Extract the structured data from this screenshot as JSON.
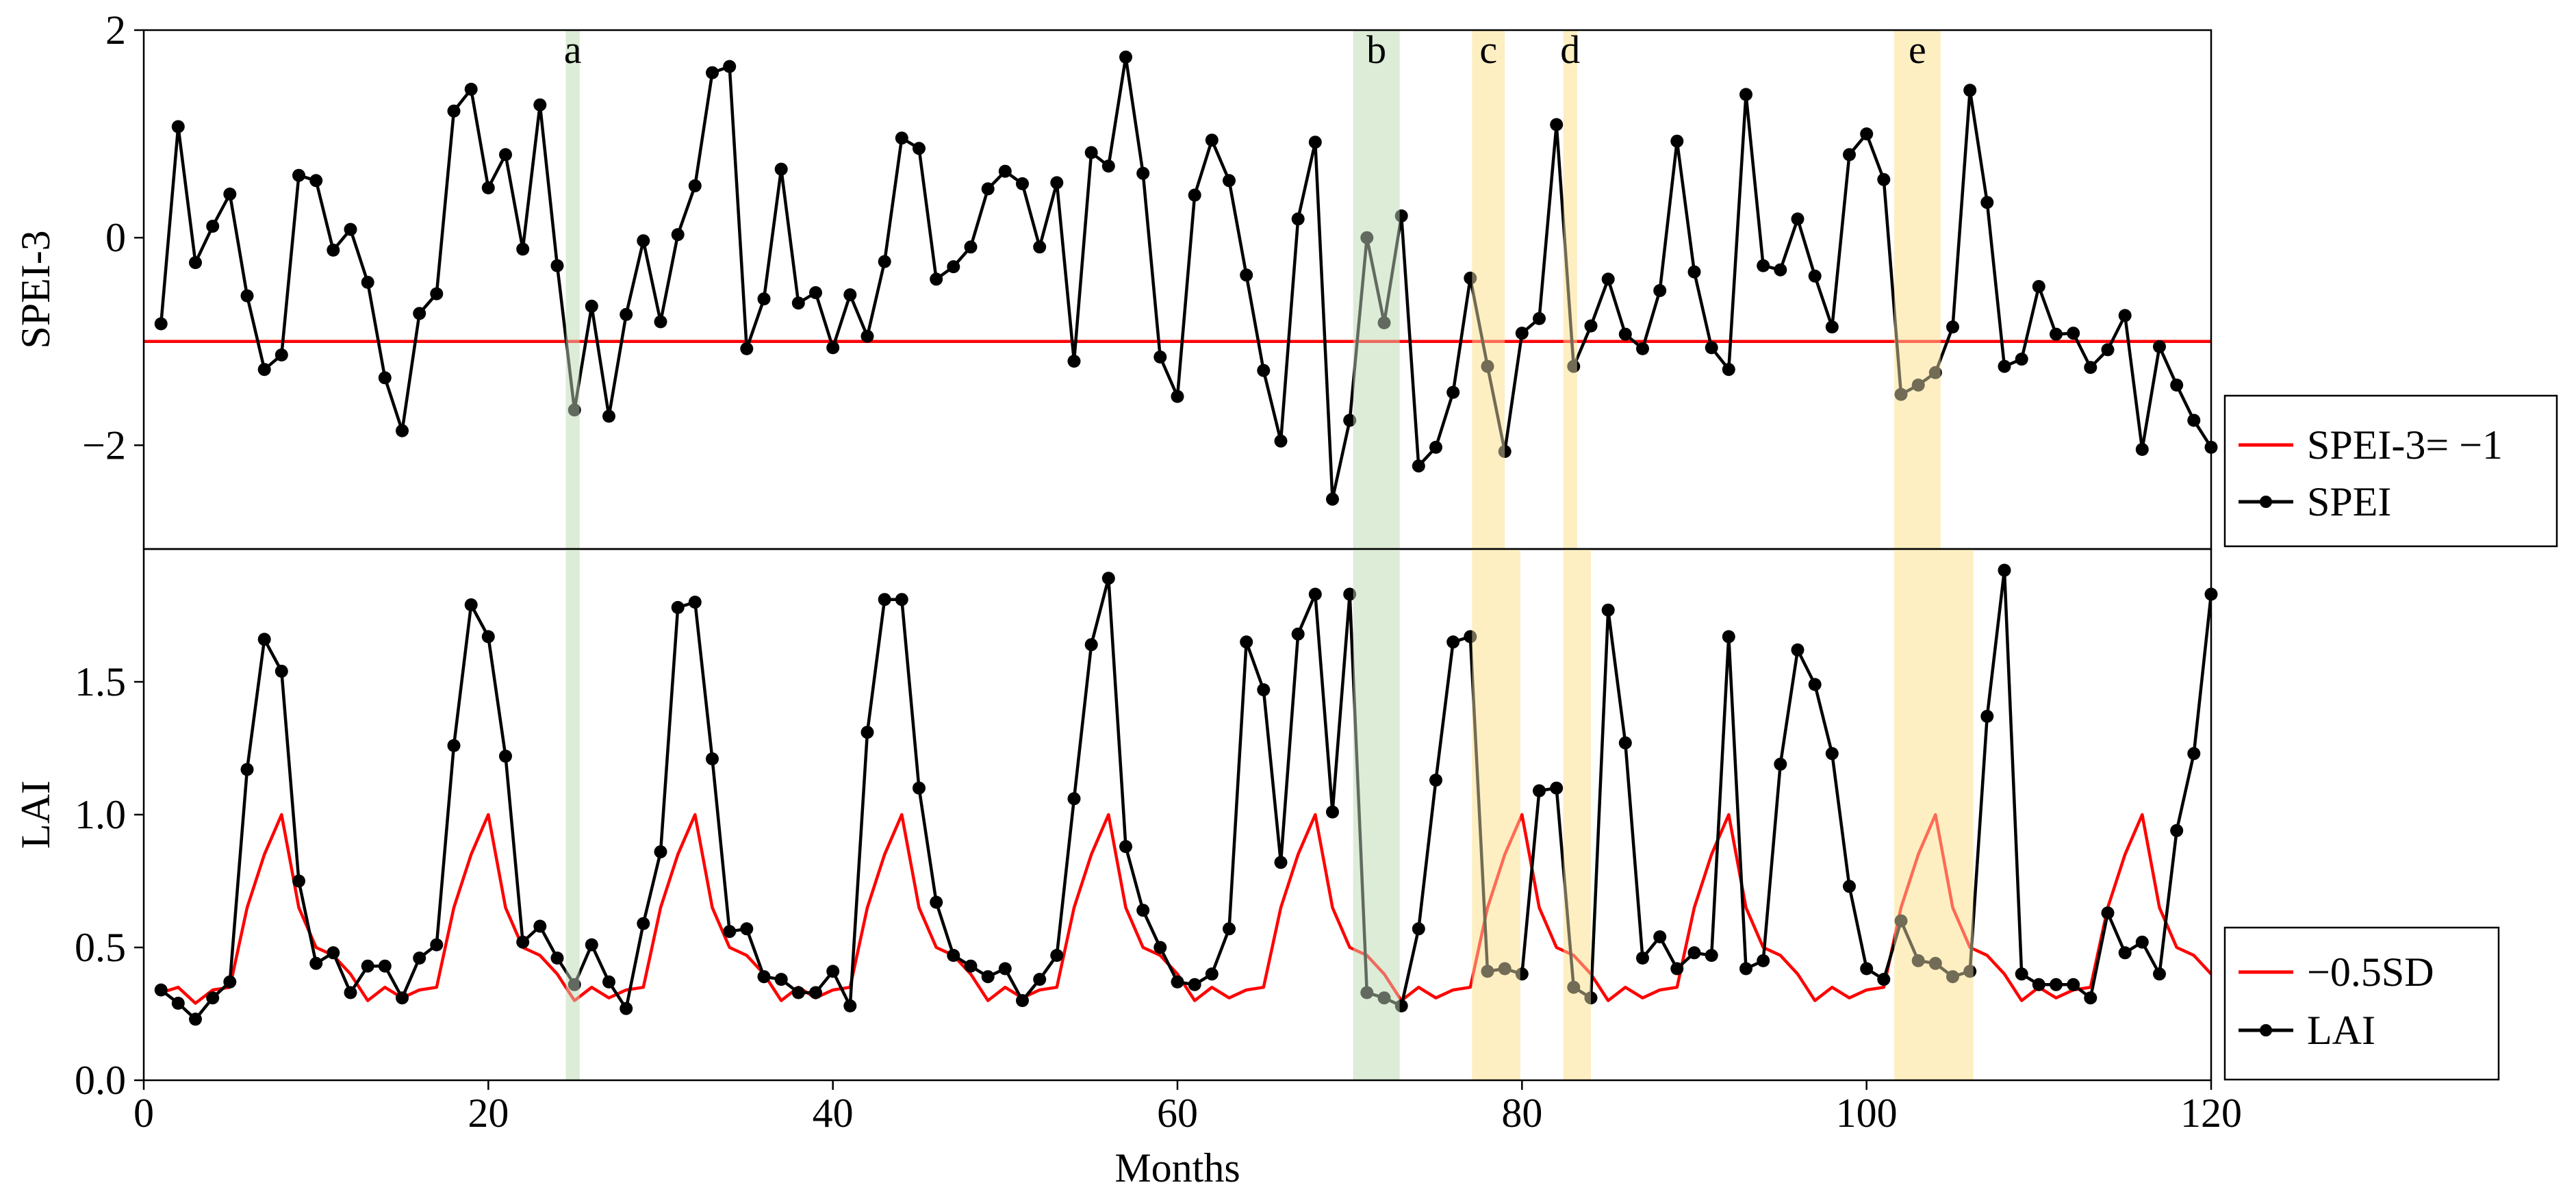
{
  "chart_data": [
    {
      "type": "line",
      "ylabel": "SPEI-3",
      "xlim": [
        0,
        120
      ],
      "ylim": [
        -3,
        2
      ],
      "yticks": [
        -2,
        0,
        2
      ],
      "ytick_labels": [
        "−2",
        "0",
        "2"
      ],
      "threshold": {
        "name": "SPEI-3= −1",
        "value": -1,
        "color": "#ff0000"
      },
      "series": [
        {
          "name": "SPEI",
          "color": "#000000",
          "values": [
            -0.83,
            1.07,
            -0.24,
            0.11,
            0.42,
            -0.56,
            -1.27,
            -1.13,
            0.6,
            0.55,
            -0.12,
            0.08,
            -0.43,
            -1.35,
            -1.86,
            -0.73,
            -0.54,
            1.22,
            1.43,
            0.48,
            0.8,
            -0.11,
            1.28,
            -0.27,
            -1.66,
            -0.66,
            -1.72,
            -0.74,
            -0.03,
            -0.81,
            0.03,
            0.5,
            1.59,
            1.65,
            -1.07,
            -0.59,
            0.66,
            -0.63,
            -0.53,
            -1.06,
            -0.55,
            -0.95,
            -0.23,
            0.96,
            0.86,
            -0.4,
            -0.28,
            -0.09,
            0.47,
            0.64,
            0.52,
            -0.09,
            0.53,
            -1.19,
            0.82,
            0.69,
            1.74,
            0.62,
            -1.15,
            -1.53,
            0.41,
            0.94,
            0.55,
            -0.36,
            -1.28,
            -1.96,
            0.18,
            0.92,
            -2.52,
            -1.76,
            0.0,
            -0.82,
            0.21,
            -2.2,
            -2.02,
            -1.49,
            -0.39,
            -1.24,
            -2.06,
            -0.92,
            -0.78,
            1.09,
            -1.24,
            -0.85,
            -0.4,
            -0.93,
            -1.07,
            -0.51,
            0.93,
            -0.33,
            -1.06,
            -1.27,
            1.38,
            -0.27,
            -0.31,
            0.18,
            -0.37,
            -0.86,
            0.8,
            1.0,
            0.56,
            -1.51,
            -1.42,
            -1.3,
            -0.86,
            1.42,
            0.34,
            -1.24,
            -1.17,
            -0.47,
            -0.93,
            -0.92,
            -1.25,
            -1.08,
            -0.75,
            -2.04,
            -1.05,
            -1.42,
            -1.76,
            -2.02
          ]
        }
      ],
      "shaded_periods": [
        {
          "label": "a",
          "start": 24.5,
          "end": 25.3,
          "color": "green"
        },
        {
          "label": "b",
          "start": 70.2,
          "end": 72.9,
          "color": "green"
        },
        {
          "label": "c",
          "start": 77.1,
          "end": 79.0,
          "color": "yellow"
        },
        {
          "label": "d",
          "start": 82.4,
          "end": 83.2,
          "color": "yellow"
        },
        {
          "label": "e",
          "start": 101.6,
          "end": 104.3,
          "color": "yellow"
        }
      ],
      "legend": {
        "position": "outside-right",
        "entries": [
          "SPEI-3= −1",
          "SPEI"
        ]
      }
    },
    {
      "type": "line",
      "xlabel": "Months",
      "ylabel": "LAI",
      "xlim": [
        0,
        120
      ],
      "ylim": [
        0,
        2.0
      ],
      "yticks": [
        0,
        0.5,
        1.0,
        1.5
      ],
      "ytick_labels": [
        "0.0",
        "0.5",
        "1.0",
        "1.5"
      ],
      "xticks": [
        0,
        20,
        40,
        60,
        80,
        100,
        120
      ],
      "xtick_labels": [
        "0",
        "20",
        "40",
        "60",
        "80",
        "100",
        "120"
      ],
      "series": [
        {
          "name": "LAI",
          "color": "#000000",
          "values": [
            0.34,
            0.29,
            0.23,
            0.31,
            0.37,
            1.17,
            1.66,
            1.54,
            0.75,
            0.44,
            0.48,
            0.33,
            0.43,
            0.43,
            0.31,
            0.46,
            0.51,
            1.26,
            1.79,
            1.67,
            1.22,
            0.52,
            0.58,
            0.46,
            0.36,
            0.51,
            0.37,
            0.27,
            0.59,
            0.86,
            1.78,
            1.8,
            1.21,
            0.56,
            0.57,
            0.39,
            0.38,
            0.33,
            0.33,
            0.41,
            0.28,
            1.31,
            1.81,
            1.81,
            1.1,
            0.67,
            0.47,
            0.43,
            0.39,
            0.42,
            0.3,
            0.38,
            0.47,
            1.06,
            1.64,
            1.89,
            0.88,
            0.64,
            0.5,
            0.37,
            0.36,
            0.4,
            0.57,
            1.65,
            1.47,
            0.82,
            1.68,
            1.83,
            1.01,
            1.83,
            0.33,
            0.31,
            0.28,
            0.57,
            1.13,
            1.65,
            1.67,
            0.41,
            0.42,
            0.4,
            1.09,
            1.1,
            0.35,
            0.31,
            1.77,
            1.27,
            0.46,
            0.54,
            0.42,
            0.48,
            0.47,
            1.67,
            0.42,
            0.45,
            1.19,
            1.62,
            1.49,
            1.23,
            0.73,
            0.42,
            0.38,
            0.6,
            0.45,
            0.44,
            0.39,
            0.41,
            1.37,
            1.92,
            0.4,
            0.36,
            0.36,
            0.36,
            0.31,
            0.63,
            0.48,
            0.52,
            0.4,
            0.94,
            1.23,
            1.83
          ]
        },
        {
          "name": "−0.5SD",
          "color": "#ff0000",
          "values": [
            0.33,
            0.35,
            0.29,
            0.34,
            0.35,
            0.65,
            0.85,
            1.0,
            0.65,
            0.5,
            0.47,
            0.4,
            0.3,
            0.35,
            0.31,
            0.34,
            0.35,
            0.65,
            0.85,
            1.0,
            0.65,
            0.5,
            0.47,
            0.4,
            0.3,
            0.35,
            0.31,
            0.34,
            0.35,
            0.65,
            0.85,
            1.0,
            0.65,
            0.5,
            0.47,
            0.4,
            0.3,
            0.35,
            0.31,
            0.34,
            0.35,
            0.65,
            0.85,
            1.0,
            0.65,
            0.5,
            0.47,
            0.4,
            0.3,
            0.35,
            0.31,
            0.34,
            0.35,
            0.65,
            0.85,
            1.0,
            0.65,
            0.5,
            0.47,
            0.4,
            0.3,
            0.35,
            0.31,
            0.34,
            0.35,
            0.65,
            0.85,
            1.0,
            0.65,
            0.5,
            0.47,
            0.4,
            0.3,
            0.35,
            0.31,
            0.34,
            0.35,
            0.65,
            0.85,
            1.0,
            0.65,
            0.5,
            0.47,
            0.4,
            0.3,
            0.35,
            0.31,
            0.34,
            0.35,
            0.65,
            0.85,
            1.0,
            0.65,
            0.5,
            0.47,
            0.4,
            0.3,
            0.35,
            0.31,
            0.34,
            0.35,
            0.65,
            0.85,
            1.0,
            0.65,
            0.5,
            0.47,
            0.4,
            0.3,
            0.35,
            0.31,
            0.34,
            0.35,
            0.65,
            0.85,
            1.0,
            0.65,
            0.5,
            0.47,
            0.4
          ]
        }
      ],
      "shaded_periods": [
        {
          "label": "a",
          "start": 24.5,
          "end": 25.3,
          "color": "green"
        },
        {
          "label": "b",
          "start": 70.2,
          "end": 72.9,
          "color": "green"
        },
        {
          "label": "c",
          "start": 77.1,
          "end": 79.9,
          "color": "yellow"
        },
        {
          "label": "d",
          "start": 82.4,
          "end": 84.0,
          "color": "yellow"
        },
        {
          "label": "e",
          "start": 101.6,
          "end": 106.2,
          "color": "yellow"
        }
      ],
      "legend": {
        "position": "outside-right",
        "entries": [
          "−0.5SD",
          "LAI"
        ]
      }
    }
  ]
}
